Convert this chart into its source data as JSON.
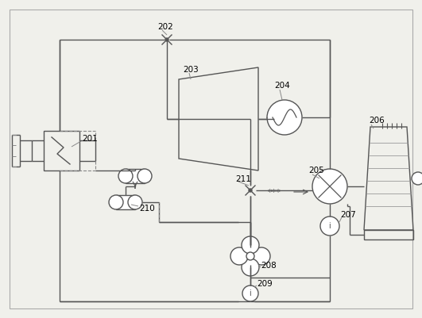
{
  "bg_color": "#f0f0eb",
  "line_color": "#555555",
  "border_color": "#999999",
  "figsize": [
    5.31,
    4.01
  ],
  "dpi": 100,
  "lw": 1.0
}
